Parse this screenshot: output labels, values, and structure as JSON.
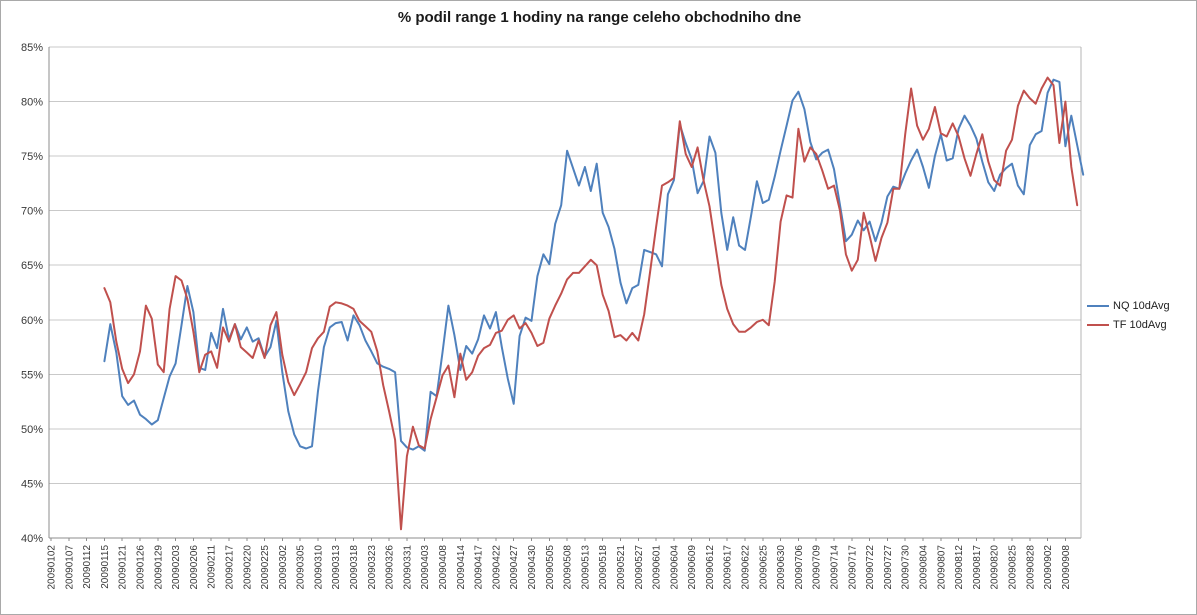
{
  "window": {
    "background": "#FFFFFF",
    "border_color": "#A9A9A9"
  },
  "chart_data": {
    "type": "line",
    "title": "% podil range 1 hodiny na range celeho obchodniho dne",
    "xlabel": "",
    "ylabel": "",
    "ylim": [
      40,
      85
    ],
    "y_tick_step": 5,
    "y_tick_labels": [
      "40%",
      "45%",
      "50%",
      "55%",
      "60%",
      "65%",
      "70%",
      "75%",
      "80%",
      "85%"
    ],
    "grid": "horizontal",
    "legend_position": "right",
    "x_note": "category axis = consecutive trading days starting 20090102 (index 0); labels shown every 3rd trading day",
    "x_ticks_every_n_points": 3,
    "x_tick_labels": [
      "20090102",
      "20090107",
      "20090112",
      "20090115",
      "20090121",
      "20090126",
      "20090129",
      "20090203",
      "20090206",
      "20090211",
      "20090217",
      "20090220",
      "20090225",
      "20090302",
      "20090305",
      "20090310",
      "20090313",
      "20090318",
      "20090323",
      "20090326",
      "20090331",
      "20090403",
      "20090408",
      "20090414",
      "20090417",
      "20090422",
      "20090427",
      "20090430",
      "20090505",
      "20090508",
      "20090513",
      "20090518",
      "20090521",
      "20090527",
      "20090601",
      "20090604",
      "20090609",
      "20090612",
      "20090617",
      "20090622",
      "20090625",
      "20090630",
      "20090706",
      "20090709",
      "20090714",
      "20090717",
      "20090722",
      "20090727",
      "20090730",
      "20090804",
      "20090807",
      "20090812",
      "20090817",
      "20090820",
      "20090825",
      "20090828",
      "20090902",
      "20090908"
    ],
    "series": [
      {
        "name": "NQ 10dAvg",
        "color": "#4F81BD",
        "start_index": 9,
        "values": [
          56.2,
          59.6,
          57.0,
          53.0,
          52.2,
          52.6,
          51.3,
          50.9,
          50.4,
          50.8,
          52.8,
          54.8,
          56.0,
          59.5,
          63.1,
          60.7,
          55.6,
          55.4,
          58.8,
          57.4,
          61.0,
          58.2,
          59.6,
          58.2,
          59.3,
          58.0,
          58.3,
          56.6,
          57.5,
          59.9,
          55.2,
          51.6,
          49.5,
          48.4,
          48.2,
          48.4,
          53.4,
          57.5,
          59.3,
          59.7,
          59.8,
          58.1,
          60.4,
          59.5,
          58.1,
          57.1,
          56.0,
          55.7,
          55.5,
          55.2,
          48.9,
          48.3,
          48.1,
          48.4,
          48.0,
          53.4,
          53.0,
          57.0,
          61.3,
          58.6,
          55.4,
          57.6,
          56.9,
          58.2,
          60.4,
          59.2,
          60.7,
          57.5,
          54.6,
          52.3,
          58.5,
          60.2,
          59.9,
          64.0,
          66.0,
          65.1,
          68.8,
          70.5,
          75.5,
          73.9,
          72.3,
          74.0,
          71.8,
          74.3,
          69.8,
          68.5,
          66.5,
          63.4,
          61.5,
          62.9,
          63.2,
          66.4,
          66.2,
          66.0,
          64.9,
          71.5,
          72.8,
          77.9,
          76.2,
          74.7,
          71.6,
          72.7,
          76.8,
          75.3,
          69.8,
          66.4,
          69.4,
          66.8,
          66.4,
          69.5,
          72.7,
          70.7,
          71.0,
          73.1,
          75.5,
          77.8,
          80.1,
          80.9,
          79.3,
          76.3,
          74.7,
          75.3,
          75.6,
          73.8,
          70.5,
          67.2,
          67.8,
          69.1,
          68.2,
          69.0,
          67.2,
          68.9,
          71.3,
          72.2,
          72.0,
          73.4,
          74.6,
          75.6,
          74.0,
          72.1,
          75.0,
          77.0,
          74.6,
          74.8,
          77.5,
          78.7,
          77.8,
          76.6,
          74.5,
          72.6,
          71.8,
          73.3,
          73.9,
          74.3,
          72.3,
          71.5,
          76.0,
          77.0,
          77.3,
          80.8,
          82.0,
          81.8,
          75.9,
          78.7,
          76.0,
          73.3
        ]
      },
      {
        "name": "TF 10dAvg",
        "color": "#C0504D",
        "start_index": 9,
        "values": [
          62.9,
          61.6,
          58.0,
          55.5,
          54.2,
          55.0,
          57.1,
          61.3,
          60.1,
          55.9,
          55.2,
          61.0,
          64.0,
          63.6,
          61.9,
          58.9,
          55.2,
          56.8,
          57.1,
          55.6,
          59.3,
          58.0,
          59.6,
          57.5,
          57.0,
          56.5,
          58.1,
          56.5,
          59.5,
          60.7,
          56.8,
          54.3,
          53.1,
          54.1,
          55.2,
          57.4,
          58.3,
          58.9,
          61.2,
          61.6,
          61.5,
          61.3,
          61.0,
          59.9,
          59.4,
          58.9,
          57.1,
          54.0,
          51.6,
          49.0,
          40.8,
          47.5,
          50.2,
          48.5,
          48.2,
          50.9,
          52.9,
          54.9,
          55.8,
          52.9,
          56.9,
          54.5,
          55.2,
          56.7,
          57.4,
          57.7,
          58.8,
          59.0,
          60.0,
          60.4,
          59.2,
          59.7,
          58.8,
          57.6,
          57.9,
          60.1,
          61.3,
          62.4,
          63.7,
          64.3,
          64.3,
          64.9,
          65.5,
          65.0,
          62.3,
          60.8,
          58.4,
          58.6,
          58.1,
          58.8,
          58.1,
          60.5,
          64.4,
          68.5,
          72.3,
          72.6,
          73.0,
          78.2,
          75.2,
          74.0,
          75.8,
          72.8,
          70.4,
          66.8,
          63.2,
          61.0,
          59.6,
          58.9,
          58.9,
          59.3,
          59.8,
          60.0,
          59.5,
          63.5,
          69.0,
          71.4,
          71.2,
          77.5,
          74.5,
          75.8,
          75.2,
          73.7,
          72.0,
          72.3,
          70.0,
          66.0,
          64.5,
          65.5,
          69.8,
          67.7,
          65.4,
          67.5,
          68.9,
          72.0,
          72.0,
          77.0,
          81.2,
          77.8,
          76.5,
          77.5,
          79.5,
          77.1,
          76.8,
          78.0,
          76.8,
          74.8,
          73.2,
          75.2,
          77.0,
          74.5,
          72.8,
          72.3,
          75.5,
          76.5,
          79.6,
          81.0,
          80.3,
          79.8,
          81.2,
          82.2,
          81.5,
          76.2,
          80.0,
          74.0,
          70.5
        ]
      }
    ]
  }
}
